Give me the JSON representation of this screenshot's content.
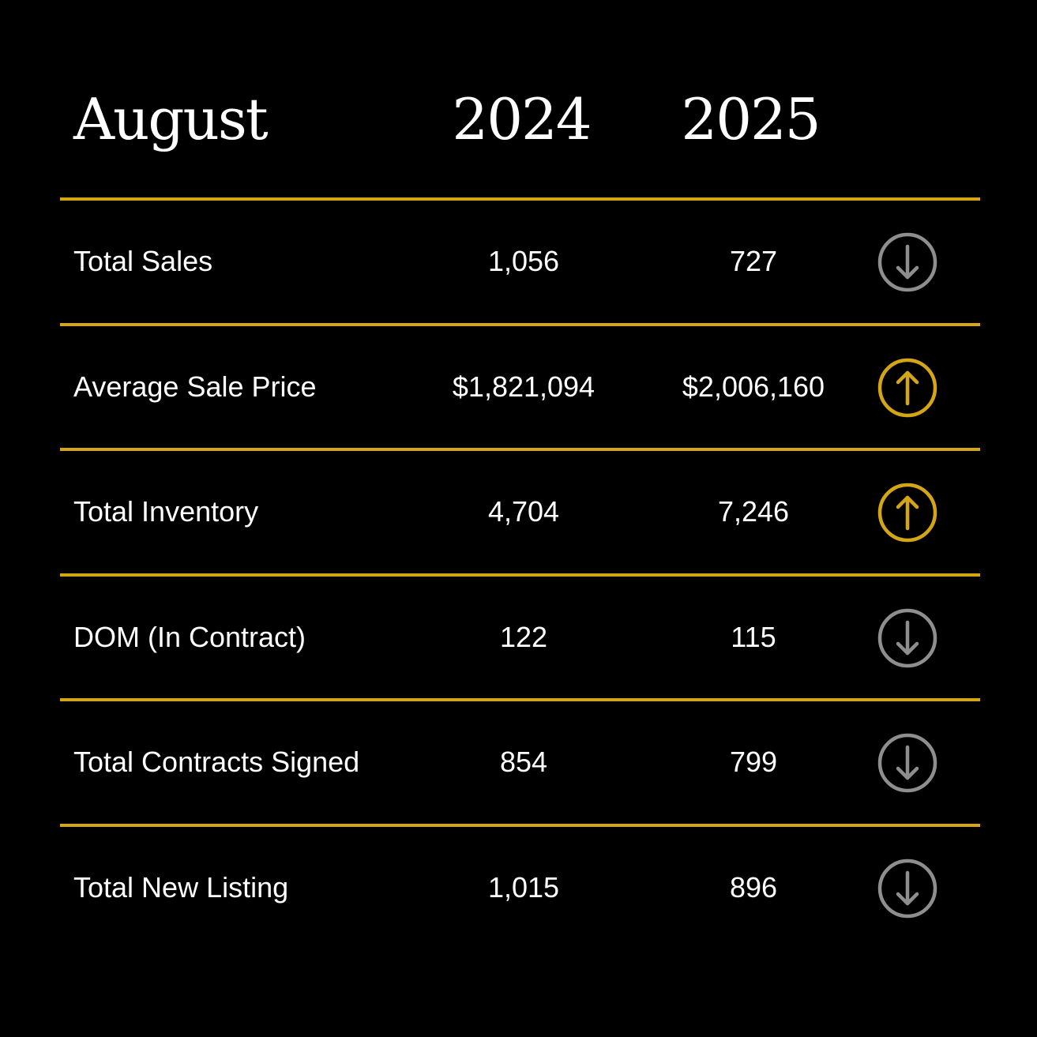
{
  "header": {
    "month": "August",
    "year_a": "2024",
    "year_b": "2025"
  },
  "colors": {
    "background": "#000000",
    "rule": "#d4a514",
    "up": "#d4a514",
    "down": "#8e8e8e",
    "text": "#ffffff"
  },
  "rows": [
    {
      "label": "Total Sales",
      "value_2024": "1,056",
      "value_2025": "727",
      "trend": "down",
      "icon": "arrow-down-circle-icon"
    },
    {
      "label": "Average Sale Price",
      "value_2024": "$1,821,094",
      "value_2025": "$2,006,160",
      "trend": "up",
      "icon": "arrow-up-circle-icon"
    },
    {
      "label": "Total Inventory",
      "value_2024": "4,704",
      "value_2025": "7,246",
      "trend": "up",
      "icon": "arrow-up-circle-icon"
    },
    {
      "label": "DOM (In Contract)",
      "value_2024": "122",
      "value_2025": "115",
      "trend": "down",
      "icon": "arrow-down-circle-icon"
    },
    {
      "label": "Total Contracts Signed",
      "value_2024": "854",
      "value_2025": "799",
      "trend": "down",
      "icon": "arrow-down-circle-icon"
    },
    {
      "label": "Total New Listing",
      "value_2024": "1,015",
      "value_2025": "896",
      "trend": "down",
      "icon": "arrow-down-circle-icon"
    }
  ]
}
